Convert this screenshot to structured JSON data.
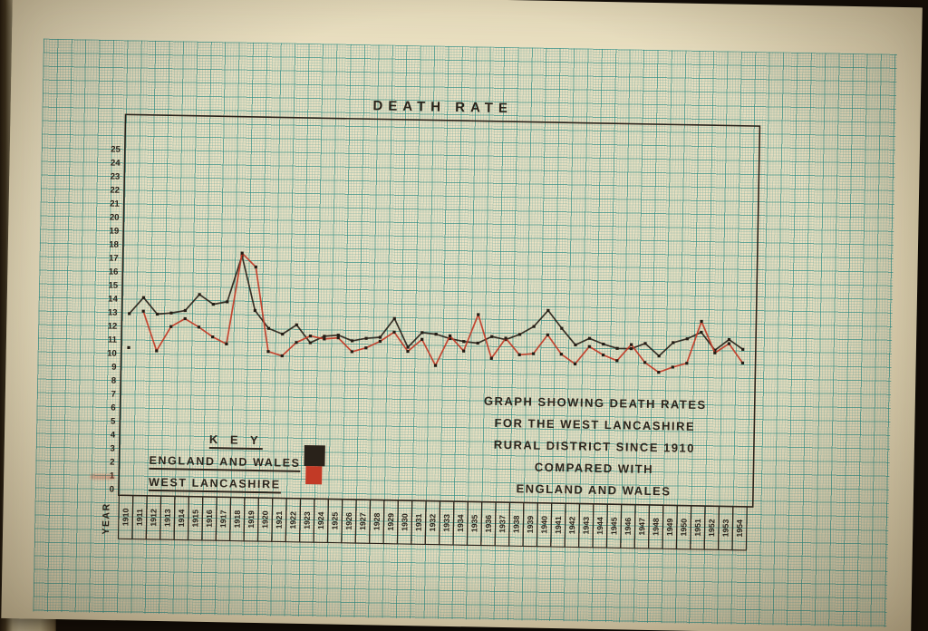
{
  "document_type": "Photograph of a hand-drawn statistical graph on teal graph paper",
  "title": "DEATH RATE",
  "x_axis_label": "YEAR",
  "caption_lines": [
    "GRAPH SHOWING DEATH RATES",
    "FOR THE WEST LANCASHIRE",
    "RURAL DISTRICT SINCE 1910",
    "COMPARED WITH",
    "ENGLAND AND WALES"
  ],
  "key": {
    "heading": "K E Y",
    "entries": [
      {
        "label": "ENGLAND AND WALES",
        "swatch_color": "#29221a"
      },
      {
        "label": "WEST LANCASHIRE",
        "swatch_color": "#c23a26"
      }
    ]
  },
  "colors": {
    "ink": "#29221a",
    "red_line": "#c23a26",
    "marker": "#241d16",
    "paper": "#e8debf",
    "grid_major": "#2e8a82",
    "backdrop": "#140e08"
  },
  "chart_data": {
    "type": "line",
    "title": "DEATH RATE",
    "xlabel": "YEAR",
    "ylabel": "",
    "ylim": [
      0,
      25
    ],
    "y_ticks": [
      25,
      24,
      23,
      22,
      21,
      20,
      19,
      18,
      17,
      16,
      15,
      14,
      13,
      12,
      11,
      10,
      9,
      8,
      7,
      6,
      5,
      4,
      3,
      2,
      1,
      0
    ],
    "grid": "graph paper",
    "legend_position": "lower left inside plot",
    "marker": "small black squares on both lines",
    "x": [
      1910,
      1911,
      1912,
      1913,
      1914,
      1915,
      1916,
      1917,
      1918,
      1919,
      1920,
      1921,
      1922,
      1923,
      1924,
      1925,
      1926,
      1927,
      1928,
      1929,
      1930,
      1931,
      1932,
      1933,
      1934,
      1935,
      1936,
      1937,
      1938,
      1939,
      1940,
      1941,
      1942,
      1943,
      1944,
      1945,
      1946,
      1947,
      1948,
      1949,
      1950,
      1951,
      1952,
      1953,
      1954
    ],
    "series": [
      {
        "name": "England and Wales",
        "color": "#29221a",
        "values": [
          12.9,
          14.1,
          12.9,
          13.0,
          13.2,
          14.4,
          13.7,
          13.9,
          17.3,
          13.3,
          12.0,
          11.6,
          12.3,
          11.0,
          11.5,
          11.6,
          11.2,
          11.4,
          11.5,
          12.9,
          10.8,
          11.9,
          11.8,
          11.5,
          11.3,
          11.2,
          11.7,
          11.5,
          11.9,
          12.5,
          13.7,
          12.4,
          11.2,
          11.7,
          11.3,
          11.0,
          11.0,
          11.4,
          10.5,
          11.5,
          11.8,
          12.3,
          11.0,
          11.8,
          11.1
        ]
      },
      {
        "name": "West Lancashire",
        "color": "#c23a26",
        "line_starts_at_x": 1911,
        "note": "1910 value drawn as an isolated dot with no connecting line",
        "values": [
          10.4,
          13.1,
          10.2,
          12.0,
          12.6,
          12.0,
          11.3,
          10.8,
          17.5,
          16.5,
          10.3,
          10.0,
          11.0,
          11.5,
          11.3,
          11.4,
          10.4,
          10.7,
          11.2,
          11.9,
          10.5,
          11.4,
          9.5,
          11.7,
          10.6,
          13.3,
          10.1,
          11.6,
          10.4,
          10.5,
          11.9,
          10.5,
          9.8,
          11.1,
          10.5,
          10.1,
          11.3,
          10.0,
          9.3,
          9.7,
          10.0,
          13.1,
          10.8,
          11.5,
          10.1
        ]
      }
    ]
  }
}
